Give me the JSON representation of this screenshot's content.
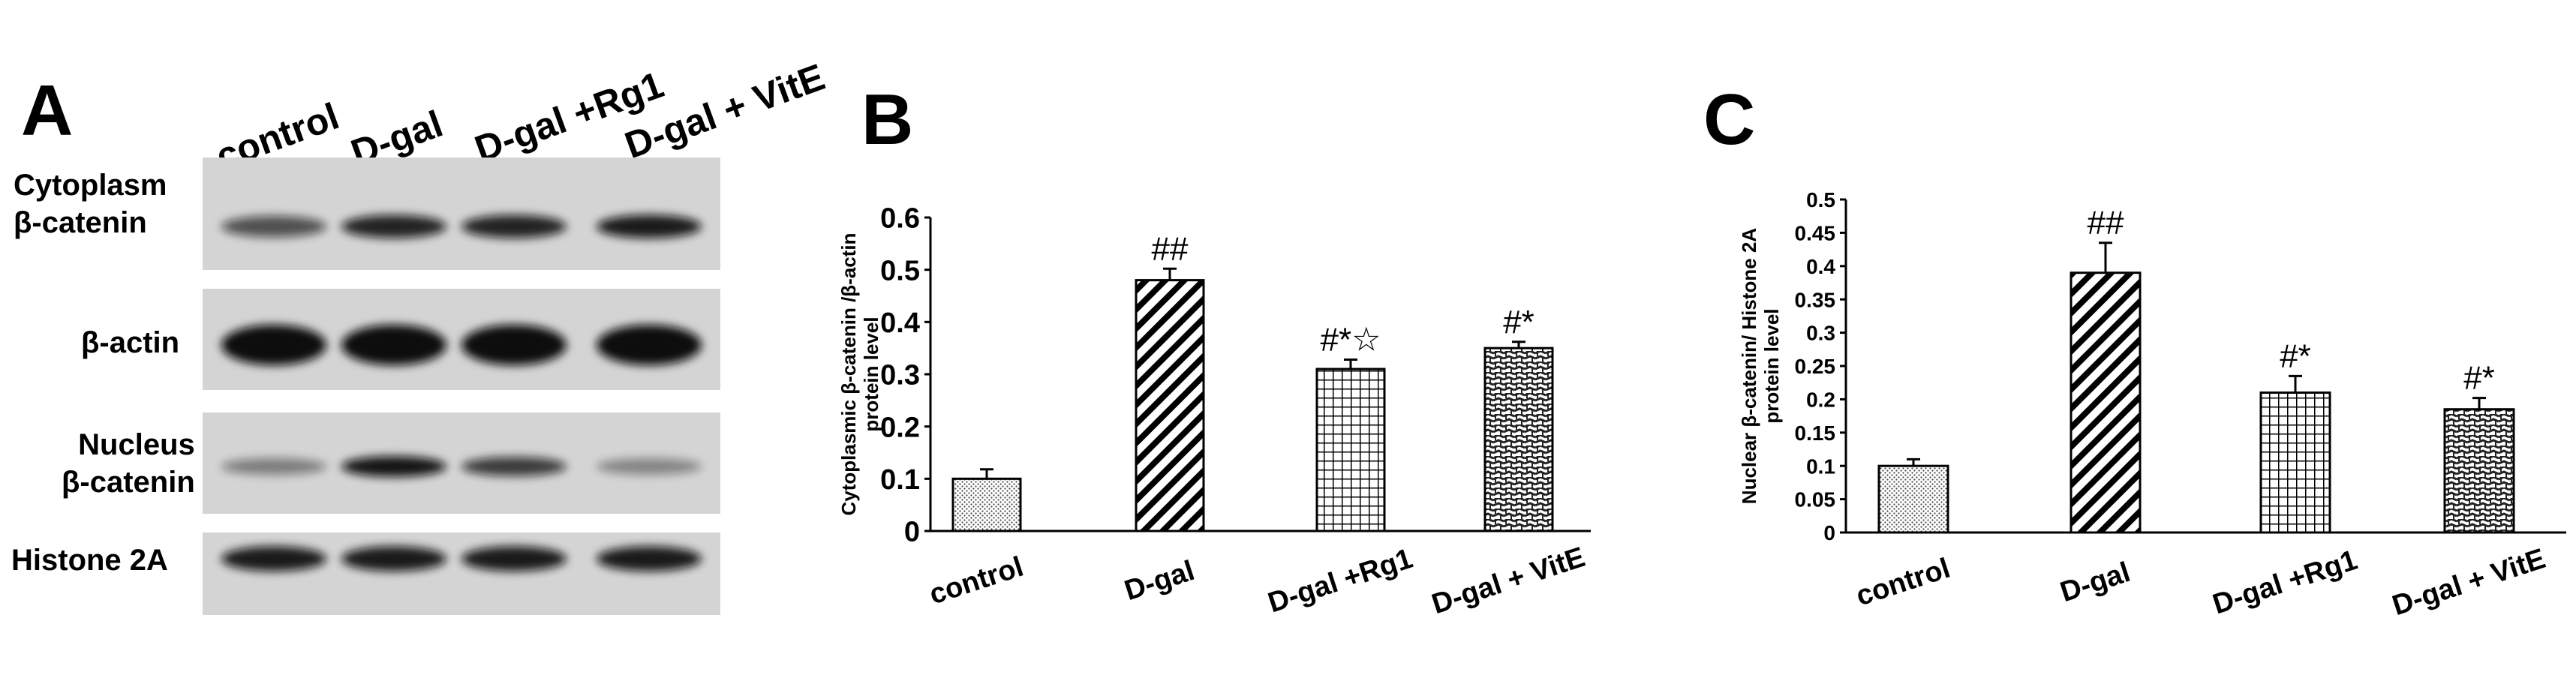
{
  "panels": {
    "a_letter": "A",
    "b_letter": "B",
    "c_letter": "C"
  },
  "blot": {
    "lane_labels": [
      "control",
      "D-gal",
      "D-gal +Rg1",
      "D-gal + VitE"
    ],
    "rows": [
      {
        "label_line1": "Cytoplasm",
        "label_line2": "β-catenin",
        "band_intensity": [
          0.55,
          0.85,
          0.85,
          0.9
        ]
      },
      {
        "label_line1": "",
        "label_line2": "β-actin",
        "band_intensity": [
          1.0,
          1.0,
          1.0,
          1.0
        ]
      },
      {
        "label_line1": "Nucleus",
        "label_line2": "β-catenin",
        "band_intensity": [
          0.25,
          0.95,
          0.7,
          0.2
        ]
      },
      {
        "label_line1": "",
        "label_line2": "Histone 2A",
        "band_intensity": [
          0.9,
          0.9,
          0.9,
          0.9
        ]
      }
    ],
    "band_color": "#111111",
    "strip_color": "#d4d4d4"
  },
  "chart_data": [
    {
      "type": "bar",
      "categories": [
        "control",
        "D-gal",
        "D-gal +Rg1",
        "D-gal + VitE"
      ],
      "values": [
        0.1,
        0.48,
        0.31,
        0.35
      ],
      "errors": [
        0.018,
        0.022,
        0.018,
        0.012
      ],
      "annotations": [
        "",
        "##",
        "#*☆",
        "#*"
      ],
      "ylabel_line1": "Cytoplasmic β-catenin /β-actin",
      "ylabel_line2": "protein level",
      "ylim": [
        0,
        0.6
      ],
      "yticks": [
        "0",
        "0.1",
        "0.2",
        "0.3",
        "0.4",
        "0.5",
        "0.6"
      ],
      "patterns": [
        "dots",
        "diagonal",
        "grid",
        "weave"
      ]
    },
    {
      "type": "bar",
      "categories": [
        "control",
        "D-gal",
        "D-gal +Rg1",
        "D-gal + VitE"
      ],
      "values": [
        0.1,
        0.39,
        0.21,
        0.185
      ],
      "errors": [
        0.01,
        0.045,
        0.025,
        0.017
      ],
      "annotations": [
        "",
        "##",
        "#*",
        "#*"
      ],
      "ylabel_line1": "Nuclear β-catenin/ Histone 2A",
      "ylabel_line2": "protein level",
      "ylim": [
        0,
        0.5
      ],
      "yticks": [
        "0",
        "0.05",
        "0.1",
        "0.15",
        "0.2",
        "0.25",
        "0.3",
        "0.35",
        "0.4",
        "0.45",
        "0.5"
      ],
      "patterns": [
        "dots",
        "diagonal",
        "grid",
        "weave"
      ]
    }
  ]
}
